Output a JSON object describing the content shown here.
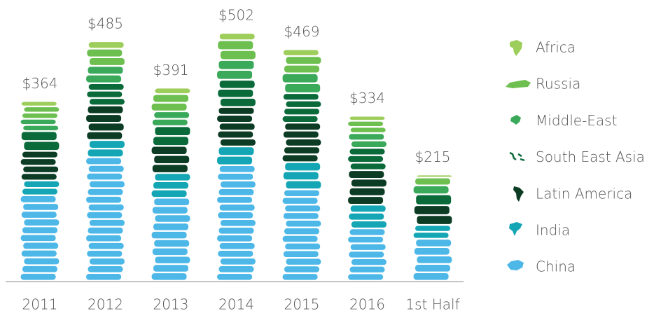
{
  "chart_data": {
    "type": "stacked-bar",
    "categories": [
      "2011",
      "2012",
      "2013",
      "2014",
      "2015",
      "2016",
      "1st Half"
    ],
    "series": [
      {
        "name": "China",
        "color": "#4db8e8",
        "values": [
          173,
          250,
          168,
          234,
          185,
          106,
          85
        ]
      },
      {
        "name": "India",
        "color": "#14a6b4",
        "values": [
          30,
          35,
          50,
          38,
          55,
          48,
          28
        ]
      },
      {
        "name": "Latin America",
        "color": "#0c3c23",
        "values": [
          60,
          70,
          55,
          80,
          80,
          70,
          40
        ]
      },
      {
        "name": "South East Asia",
        "color": "#0b6a3a",
        "values": [
          40,
          45,
          40,
          55,
          60,
          45,
          22
        ]
      },
      {
        "name": "Middle-East",
        "color": "#3aa95a",
        "values": [
          25,
          35,
          30,
          40,
          40,
          30,
          18
        ]
      },
      {
        "name": "Russia",
        "color": "#6dbf50",
        "values": [
          25,
          35,
          35,
          40,
          35,
          25,
          16
        ]
      },
      {
        "name": "Africa",
        "color": "#9dcd5a",
        "values": [
          11,
          15,
          13,
          15,
          14,
          10,
          6
        ]
      }
    ],
    "totals": [
      364,
      485,
      391,
      502,
      469,
      334,
      215
    ],
    "total_labels": [
      "$364",
      "$485",
      "$391",
      "$502",
      "$469",
      "$334",
      "$215"
    ]
  }
}
